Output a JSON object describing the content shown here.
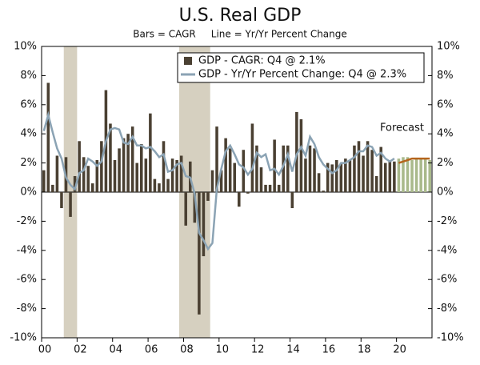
{
  "chart_data": {
    "type": "bar-line",
    "title": "U.S. Real GDP",
    "subtitle": "Bars = CAGR     Line = Yr/Yr Percent Change",
    "annotation": "Forecast",
    "forecast_start": 2020,
    "x": [
      2000,
      2000.25,
      2000.5,
      2000.75,
      2001,
      2001.25,
      2001.5,
      2001.75,
      2002,
      2002.25,
      2002.5,
      2002.75,
      2003,
      2003.25,
      2003.5,
      2003.75,
      2004,
      2004.25,
      2004.5,
      2004.75,
      2005,
      2005.25,
      2005.5,
      2005.75,
      2006,
      2006.25,
      2006.5,
      2006.75,
      2007,
      2007.25,
      2007.5,
      2007.75,
      2008,
      2008.25,
      2008.5,
      2008.75,
      2009,
      2009.25,
      2009.5,
      2009.75,
      2010,
      2010.25,
      2010.5,
      2010.75,
      2011,
      2011.25,
      2011.5,
      2011.75,
      2012,
      2012.25,
      2012.5,
      2012.75,
      2013,
      2013.25,
      2013.5,
      2013.75,
      2014,
      2014.25,
      2014.5,
      2014.75,
      2015,
      2015.25,
      2015.5,
      2015.75,
      2016,
      2016.25,
      2016.5,
      2016.75,
      2017,
      2017.25,
      2017.5,
      2017.75,
      2018,
      2018.25,
      2018.5,
      2018.75,
      2019,
      2019.25,
      2019.5,
      2019.75,
      2020,
      2020.25,
      2020.5,
      2020.75,
      2021,
      2021.25,
      2021.5,
      2021.75
    ],
    "series": [
      {
        "name": "GDP - CAGR: Q4 @ 2.1%",
        "kind": "bar",
        "color": "#4a4032",
        "forecast_color": "#a9b98b",
        "values": [
          1.5,
          7.5,
          0.5,
          2.5,
          -1.1,
          2.4,
          -1.7,
          1.1,
          3.5,
          2.4,
          1.8,
          0.6,
          2.2,
          3.5,
          7.0,
          4.7,
          2.2,
          3.0,
          3.7,
          4.0,
          4.5,
          2.0,
          3.3,
          2.3,
          5.4,
          0.9,
          0.6,
          3.5,
          0.9,
          2.3,
          2.2,
          2.5,
          -2.3,
          2.1,
          -2.1,
          -8.4,
          -4.4,
          -0.6,
          1.5,
          4.5,
          1.5,
          3.7,
          3.0,
          2.0,
          -1.0,
          2.9,
          -0.1,
          4.7,
          3.2,
          1.7,
          0.5,
          0.5,
          3.6,
          0.5,
          3.2,
          3.2,
          -1.1,
          5.5,
          5.0,
          2.3,
          3.2,
          3.0,
          1.3,
          0.1,
          2.0,
          1.9,
          2.2,
          2.0,
          2.3,
          2.2,
          3.2,
          3.5,
          2.5,
          3.5,
          2.9,
          1.1,
          3.1,
          2.0,
          2.1,
          2.1,
          2.3,
          2.4,
          2.4,
          2.2,
          2.3,
          2.3,
          2.3,
          2.2
        ]
      },
      {
        "name": "GDP - Yr/Yr Percent Change: Q4 @ 2.3%",
        "kind": "line",
        "color": "#8ba3b4",
        "forecast_color": "#b5651d",
        "values": [
          4.2,
          5.3,
          4.1,
          3.0,
          2.3,
          1.0,
          0.5,
          0.2,
          1.3,
          1.5,
          2.3,
          2.1,
          1.8,
          2.1,
          3.5,
          4.3,
          4.4,
          4.3,
          3.4,
          3.3,
          3.8,
          3.2,
          3.2,
          3.0,
          3.1,
          2.8,
          2.4,
          2.6,
          1.4,
          1.5,
          1.9,
          2.0,
          1.1,
          1.0,
          -0.1,
          -2.8,
          -3.3,
          -3.9,
          -3.5,
          0.2,
          1.6,
          2.8,
          3.2,
          2.6,
          1.9,
          1.7,
          1.2,
          1.6,
          2.7,
          2.4,
          2.6,
          1.5,
          1.6,
          1.2,
          1.8,
          2.6,
          1.4,
          2.6,
          3.1,
          2.5,
          3.8,
          3.3,
          2.4,
          1.9,
          1.6,
          1.3,
          1.5,
          2.0,
          2.0,
          2.2,
          2.4,
          2.8,
          2.8,
          3.2,
          3.1,
          2.5,
          2.7,
          2.3,
          2.1,
          2.3,
          2.0,
          2.1,
          2.2,
          2.3,
          2.3,
          2.3,
          2.3,
          2.3
        ]
      }
    ],
    "shaded": [
      [
        2001.25,
        2002
      ],
      [
        2007.75,
        2009.5
      ]
    ],
    "shade_color": "#d6d0c0",
    "xlim": [
      2000,
      2022
    ],
    "xticks": [
      {
        "value": 2000,
        "label": "00"
      },
      {
        "value": 2002,
        "label": "02"
      },
      {
        "value": 2004,
        "label": "04"
      },
      {
        "value": 2006,
        "label": "06"
      },
      {
        "value": 2008,
        "label": "08"
      },
      {
        "value": 2010,
        "label": "10"
      },
      {
        "value": 2012,
        "label": "12"
      },
      {
        "value": 2014,
        "label": "14"
      },
      {
        "value": 2016,
        "label": "16"
      },
      {
        "value": 2018,
        "label": "18"
      },
      {
        "value": 2020,
        "label": "20"
      }
    ],
    "ylim": [
      -10,
      10
    ],
    "yticks": [
      {
        "value": -10,
        "label": "-10%"
      },
      {
        "value": -8,
        "label": "-8%"
      },
      {
        "value": -6,
        "label": "-6%"
      },
      {
        "value": -4,
        "label": "-4%"
      },
      {
        "value": -2,
        "label": "-2%"
      },
      {
        "value": 0,
        "label": "0%"
      },
      {
        "value": 2,
        "label": "2%"
      },
      {
        "value": 4,
        "label": "4%"
      },
      {
        "value": 6,
        "label": "6%"
      },
      {
        "value": 8,
        "label": "8%"
      },
      {
        "value": 10,
        "label": "10%"
      }
    ],
    "y2lim": [
      -10,
      10
    ],
    "y2ticks": [
      {
        "value": -10,
        "label": "-10%"
      },
      {
        "value": -8,
        "label": "-8%"
      },
      {
        "value": -6,
        "label": "-6%"
      },
      {
        "value": -4,
        "label": "-4%"
      },
      {
        "value": -2,
        "label": "-2%"
      },
      {
        "value": 0,
        "label": "0%"
      },
      {
        "value": 2,
        "label": "2%"
      },
      {
        "value": 4,
        "label": "4%"
      },
      {
        "value": 6,
        "label": "6%"
      },
      {
        "value": 8,
        "label": "8%"
      },
      {
        "value": 10,
        "label": "10%"
      }
    ],
    "legend": "top"
  }
}
